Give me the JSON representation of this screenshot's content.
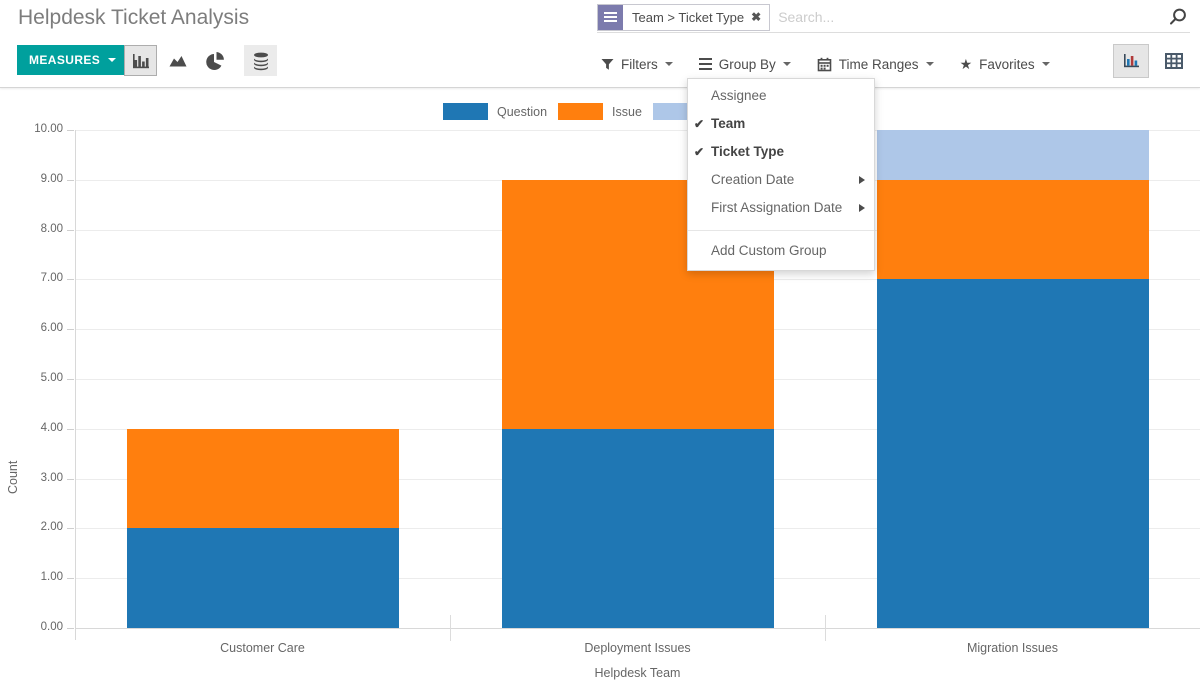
{
  "header": {
    "title": "Helpdesk Ticket Analysis",
    "search": {
      "facet_label": "Team > Ticket Type",
      "facet_remove": "✖",
      "placeholder": "Search..."
    }
  },
  "control_panel": {
    "measures_label": "MEASURES",
    "chart_type_buttons": [
      {
        "name": "bar-chart",
        "active": true
      },
      {
        "name": "area-chart",
        "active": false
      },
      {
        "name": "pie-chart",
        "active": false
      }
    ],
    "stacked_toggle": {
      "name": "stacked",
      "active": true
    },
    "menus": [
      {
        "label": "Filters",
        "icon": "filter-icon"
      },
      {
        "label": "Group By",
        "icon": "bars-icon",
        "open": true
      },
      {
        "label": "Time Ranges",
        "icon": "calendar-icon"
      },
      {
        "label": "Favorites",
        "icon": "star-icon"
      }
    ],
    "view_switcher": [
      {
        "name": "graph-view",
        "active": true
      },
      {
        "name": "pivot-view",
        "active": false
      }
    ]
  },
  "group_by_menu": {
    "items": [
      {
        "label": "Assignee",
        "checked": false
      },
      {
        "label": "Team",
        "checked": true
      },
      {
        "label": "Ticket Type",
        "checked": true
      },
      {
        "label": "Creation Date",
        "checked": false,
        "submenu": true
      },
      {
        "label": "First Assignation Date",
        "checked": false,
        "submenu": true
      },
      {
        "divider": true
      },
      {
        "label": "Add Custom Group",
        "checked": false
      }
    ]
  },
  "chart_data": {
    "type": "bar",
    "stacked": true,
    "categories": [
      "Customer Care",
      "Deployment Issues",
      "Migration Issues"
    ],
    "series": [
      {
        "name": "Question",
        "color": "#1f77b4",
        "values": [
          2,
          4,
          7
        ]
      },
      {
        "name": "Issue",
        "color": "#ff7f0e",
        "values": [
          2,
          5,
          2
        ]
      },
      {
        "name": "",
        "color": "#aec7e8",
        "values": [
          0,
          0,
          1
        ],
        "label_hidden": true
      }
    ],
    "xlabel": "Helpdesk Team",
    "ylabel": "Count",
    "ylim": [
      0,
      10
    ],
    "y_tick_labels": [
      "0.00",
      "1.00",
      "2.00",
      "3.00",
      "4.00",
      "5.00",
      "6.00",
      "7.00",
      "8.00",
      "9.00",
      "10.00"
    ],
    "grid": true,
    "legend_position": "top-center"
  },
  "colors": {
    "accent_teal": "#00a09d",
    "facet_purple": "#7c7bad"
  }
}
